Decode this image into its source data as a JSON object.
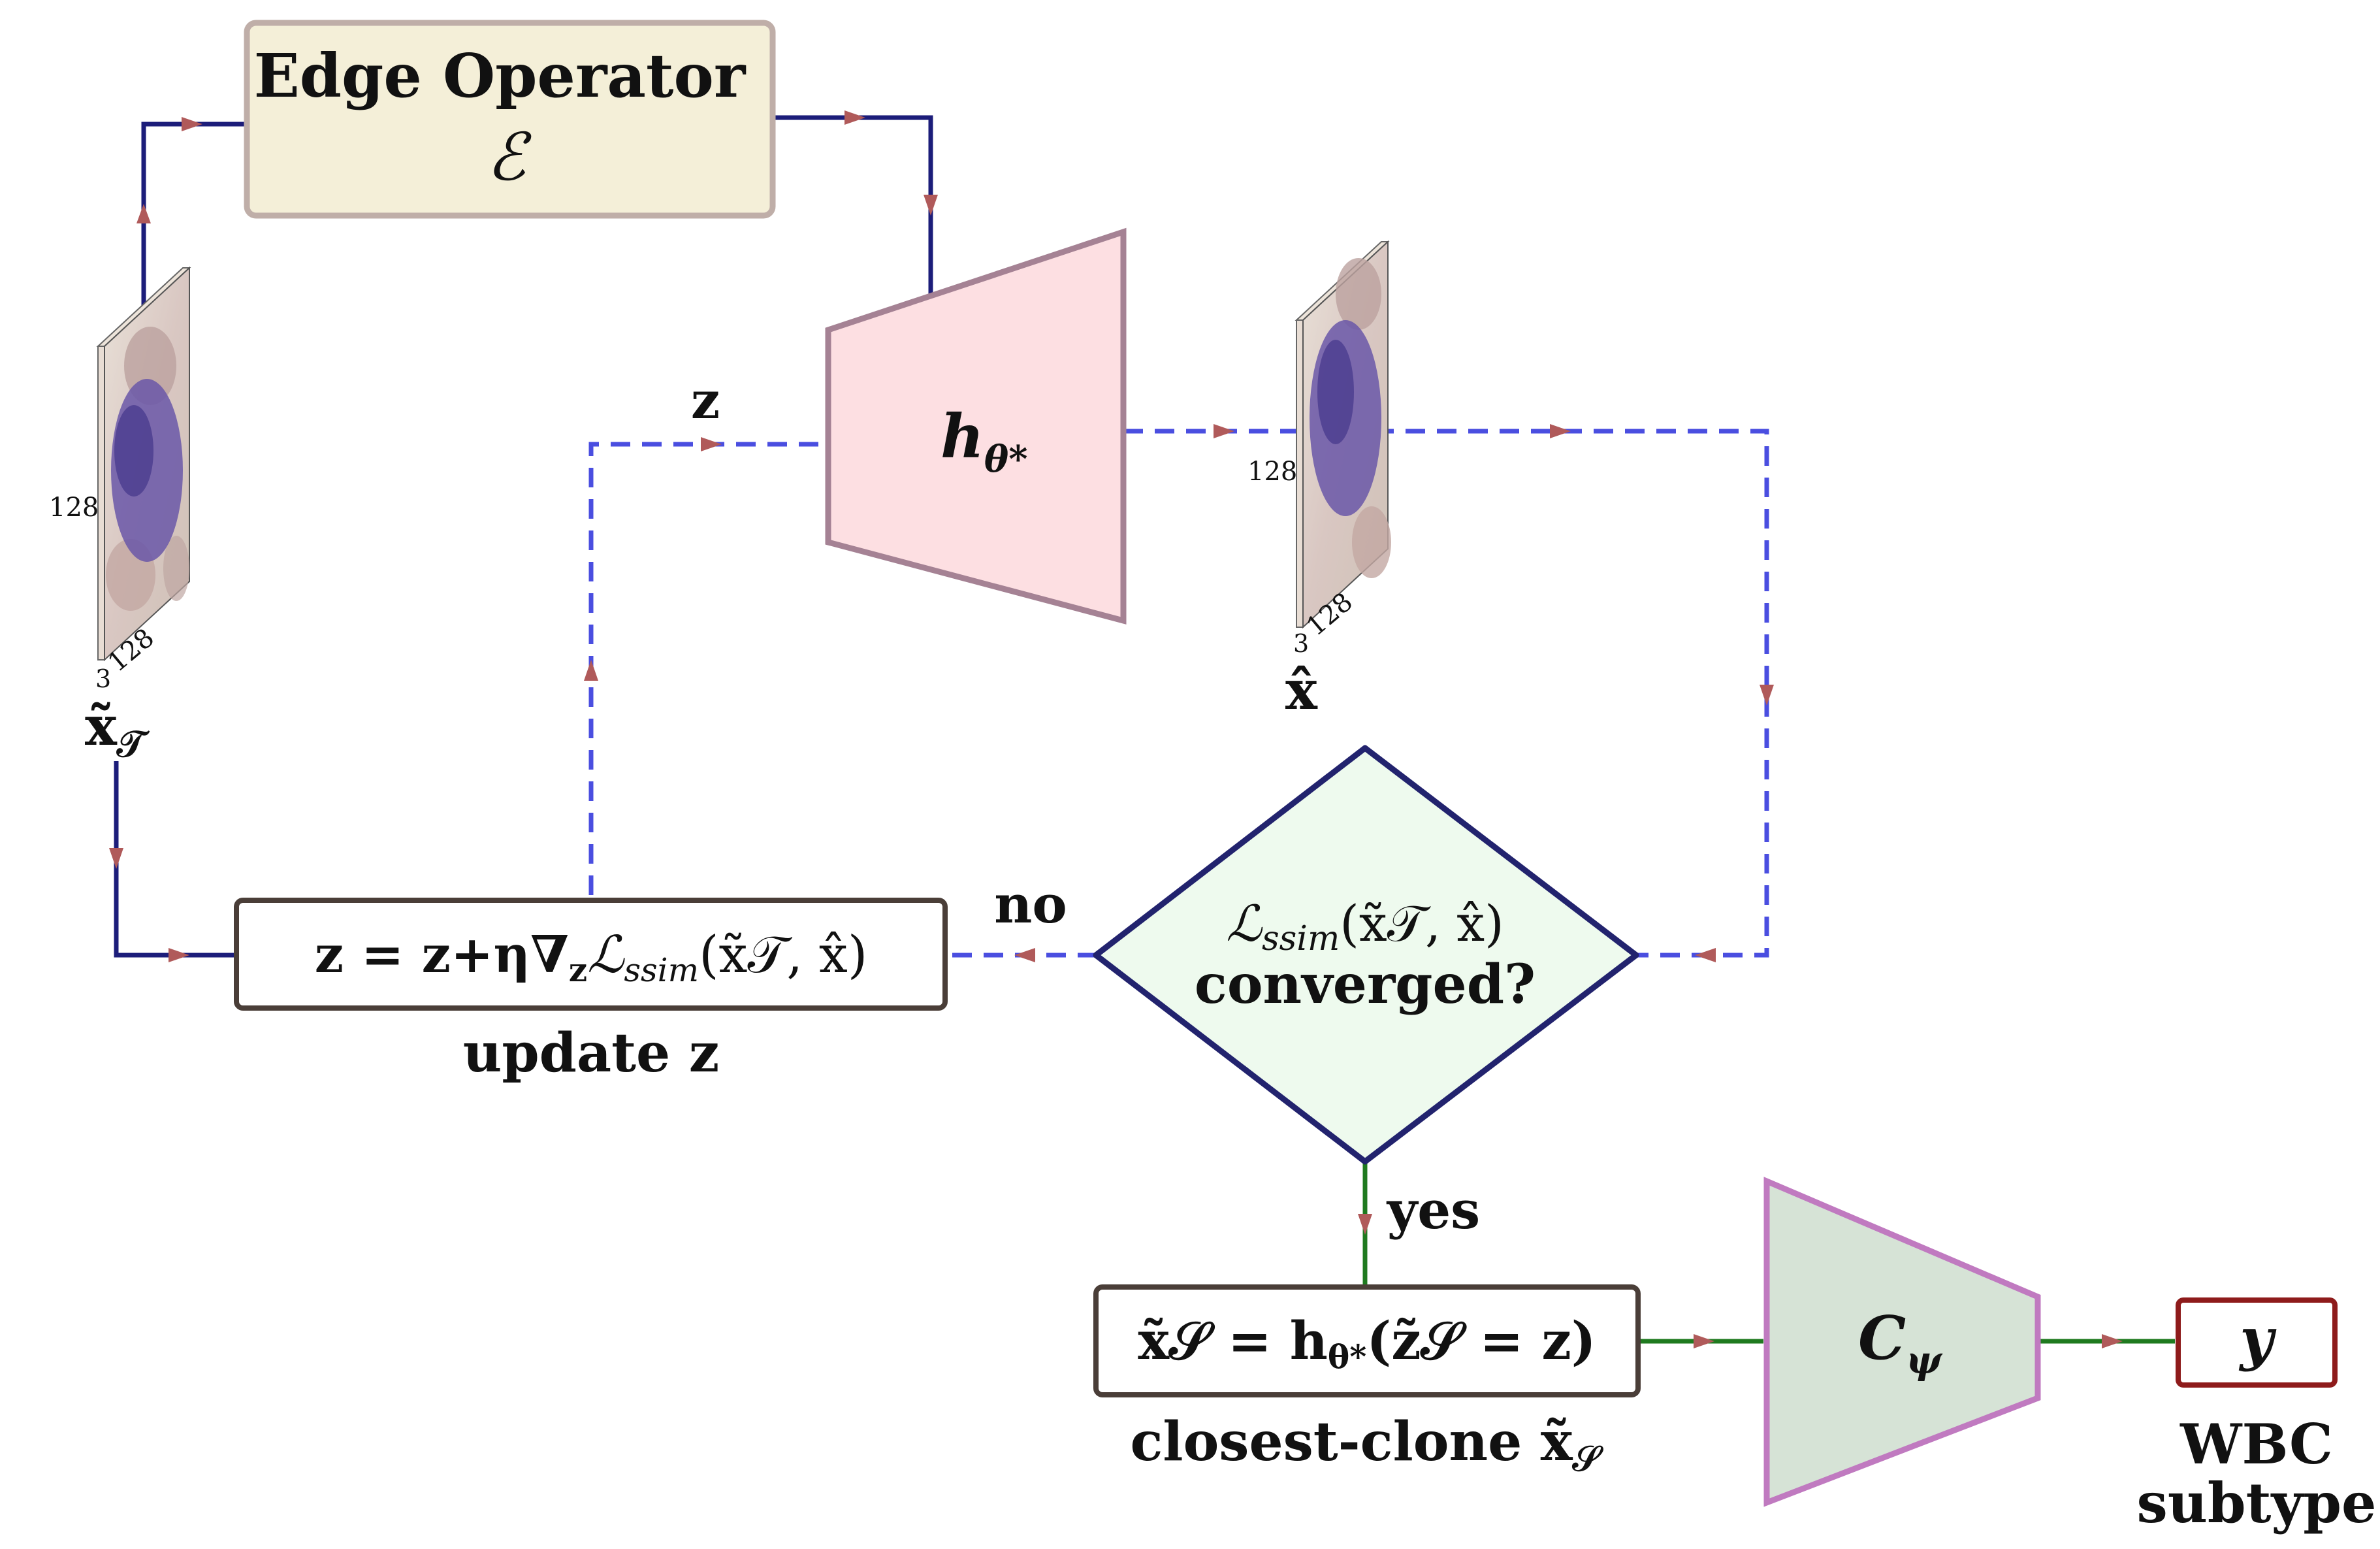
{
  "colors": {
    "solid_flow": "#1c1d7a",
    "dashed_flow": "#4a4ee0",
    "yes_flow": "#1f7a1f",
    "arrowhead": "#b05a5a",
    "edge_fill": "#f4efd8",
    "edge_stroke": "#bfaea8",
    "generator_fill": "#fddfe2",
    "generator_stroke": "#a58294",
    "decision_fill": "#eefaee",
    "decision_stroke": "#22236e",
    "classifier_fill": "#d6e3d6",
    "classifier_stroke": "#c07ac0",
    "box_stroke": "#4a3e38",
    "output_stroke": "#8e1b1b"
  },
  "edge_operator": {
    "title": "Edge Operator",
    "symbol": "ℰ"
  },
  "generator": {
    "label_main": "h",
    "label_sub": "θ*"
  },
  "input_image": {
    "dim_height": "128",
    "dim_width": "128",
    "dim_channels": "3",
    "label": "x̃",
    "label_sub": "𝒯"
  },
  "output_image": {
    "dim_height": "128",
    "dim_width": "128",
    "dim_channels": "3",
    "label": "x̂"
  },
  "latent_label": "z",
  "decision": {
    "line1": "ℒssim(x̃𝒯, x̂)",
    "line1_main": "ℒ",
    "line1_sub": "ssim",
    "line1_args": "(x̃𝒯, x̂)",
    "line2": "converged?"
  },
  "no_label": "no",
  "yes_label": "yes",
  "update_box": {
    "formula_a": "z = z+η∇",
    "formula_sub": "z",
    "formula_b": "ℒ",
    "formula_sub2": "ssim",
    "formula_c": "(x̃𝒯, x̂)",
    "caption": "update z"
  },
  "clone_box": {
    "formula": "x̃𝒮 = h",
    "formula_sub": "θ*",
    "formula_b": "(z̃𝒮 = z)",
    "caption_a": "closest-clone x̃",
    "caption_sub": "𝒮"
  },
  "classifier": {
    "label_main": "C",
    "label_sub": "ψ"
  },
  "output": {
    "label": "y",
    "caption_line1": "WBC",
    "caption_line2": "subtype"
  }
}
